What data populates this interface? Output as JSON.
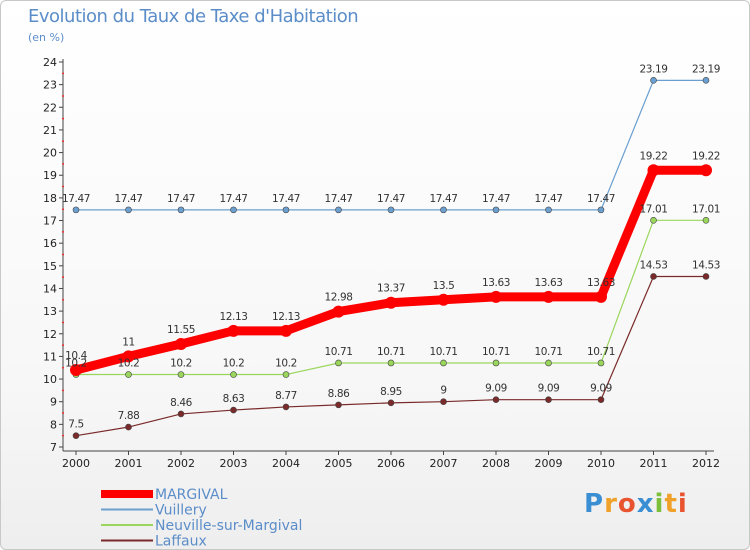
{
  "header": {
    "title": "Evolution du Taux de Taxe d'Habitation",
    "unit": "(en %)"
  },
  "brand": {
    "letters": [
      {
        "ch": "P",
        "color": "#3a8fd4"
      },
      {
        "ch": "r",
        "color": "#f0a12a"
      },
      {
        "ch": "o",
        "color": "#e8542f"
      },
      {
        "ch": "x",
        "color": "#3a8fd4"
      },
      {
        "ch": "i",
        "color": "#7bbf3a"
      },
      {
        "ch": "t",
        "color": "#f0a12a"
      },
      {
        "ch": "i",
        "color": "#e8542f"
      }
    ]
  },
  "chart_data": {
    "type": "line",
    "title": "Evolution du Taux de Taxe d'Habitation",
    "ylabel": "(en %)",
    "xlabel": "",
    "ylim": [
      7,
      24
    ],
    "yticks": [
      7,
      8,
      9,
      10,
      11,
      12,
      13,
      14,
      15,
      16,
      17,
      18,
      19,
      20,
      21,
      22,
      23,
      24
    ],
    "x": [
      "2000",
      "2001",
      "2002",
      "2003",
      "2004",
      "2005",
      "2006",
      "2007",
      "2008",
      "2009",
      "2010",
      "2011",
      "2012"
    ],
    "grid": false,
    "legend_position": "bottom-left",
    "series": [
      {
        "name": "MARGIVAL",
        "color": "#ff0000",
        "width": 9,
        "values": [
          10.4,
          11,
          11.55,
          12.13,
          12.13,
          12.98,
          13.37,
          13.5,
          13.63,
          13.63,
          13.63,
          19.22,
          19.22
        ],
        "labels": [
          "10.4",
          "11",
          "11.55",
          "12.13",
          "12.13",
          "12.98",
          "13.37",
          "13.5",
          "13.63",
          "13.63",
          "13.63",
          "19.22",
          "19.22"
        ]
      },
      {
        "name": "Vuillery",
        "color": "#6b9fcf",
        "width": 1.2,
        "values": [
          17.47,
          17.47,
          17.47,
          17.47,
          17.47,
          17.47,
          17.47,
          17.47,
          17.47,
          17.47,
          17.47,
          23.19,
          23.19
        ],
        "labels": [
          "17.47",
          "17.47",
          "17.47",
          "17.47",
          "17.47",
          "17.47",
          "17.47",
          "17.47",
          "17.47",
          "17.47",
          "17.47",
          "23.19",
          "23.19"
        ]
      },
      {
        "name": "Neuville-sur-Margival",
        "color": "#99d65b",
        "width": 1.2,
        "values": [
          10.2,
          10.2,
          10.2,
          10.2,
          10.2,
          10.71,
          10.71,
          10.71,
          10.71,
          10.71,
          10.71,
          17.01,
          17.01
        ],
        "labels": [
          "10.2",
          "10.2",
          "10.2",
          "10.2",
          "10.2",
          "10.71",
          "10.71",
          "10.71",
          "10.71",
          "10.71",
          "10.71",
          "17.01",
          "17.01"
        ]
      },
      {
        "name": "Laffaux",
        "color": "#7a2a2a",
        "width": 1.2,
        "values": [
          7.5,
          7.88,
          8.46,
          8.63,
          8.77,
          8.86,
          8.95,
          9,
          9.09,
          9.09,
          9.09,
          14.53,
          14.53
        ],
        "labels": [
          "7.5",
          "7.88",
          "8.46",
          "8.63",
          "8.77",
          "8.86",
          "8.95",
          "9",
          "9.09",
          "9.09",
          "9.09",
          "14.53",
          "14.53"
        ]
      }
    ]
  }
}
